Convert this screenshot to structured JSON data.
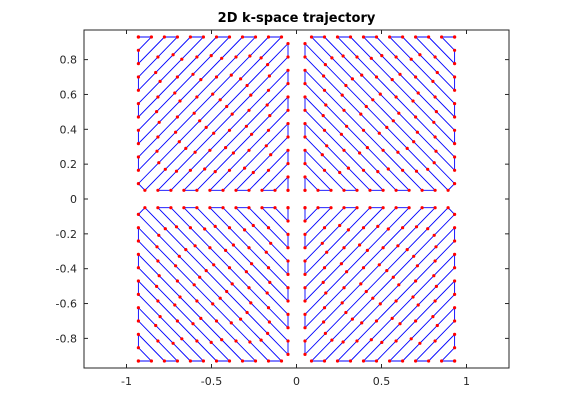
{
  "chart_data": {
    "type": "line",
    "title": "2D k-space trajectory",
    "xlabel": "",
    "ylabel": "",
    "xlim": [
      -1.25,
      1.25
    ],
    "ylim": [
      -0.97,
      0.97
    ],
    "xticks": [
      -1,
      -0.5,
      0,
      0.5,
      1
    ],
    "xtick_labels": [
      "-1",
      "-0.5",
      "0",
      "0.5",
      "1"
    ],
    "yticks": [
      0.8,
      0.6,
      0.4,
      0.2,
      0,
      -0.2,
      -0.4,
      -0.6,
      -0.8
    ],
    "ytick_labels": [
      "0.8",
      "0.6",
      "0.4",
      "0.2",
      "0",
      "-0.2",
      "-0.4",
      "-0.6",
      "-0.8"
    ],
    "grid": false,
    "legend": "none",
    "line_color": "#0000ff",
    "marker_color": "#ff0000",
    "series": [
      {
        "style": "line-with-markers",
        "description_of_pattern": "four quadrant diagonal zig-zag rasters",
        "quadrants": [
          {
            "region": "upper-left",
            "x_range": [
              -0.93,
              -0.05
            ],
            "y_range": [
              0.05,
              0.93
            ],
            "direction": "diagonal-up-right",
            "num_passes": 23
          },
          {
            "region": "upper-right",
            "x_range": [
              0.05,
              0.93
            ],
            "y_range": [
              0.05,
              0.93
            ],
            "direction": "diagonal-up-left",
            "num_passes": 23
          },
          {
            "region": "lower-left",
            "x_range": [
              -0.93,
              -0.05
            ],
            "y_range": [
              -0.93,
              -0.05
            ],
            "direction": "diagonal-down-right",
            "num_passes": 23
          },
          {
            "region": "lower-right",
            "x_range": [
              0.05,
              0.93
            ],
            "y_range": [
              -0.93,
              -0.05
            ],
            "direction": "diagonal-down-left",
            "num_passes": 23
          }
        ]
      }
    ]
  }
}
